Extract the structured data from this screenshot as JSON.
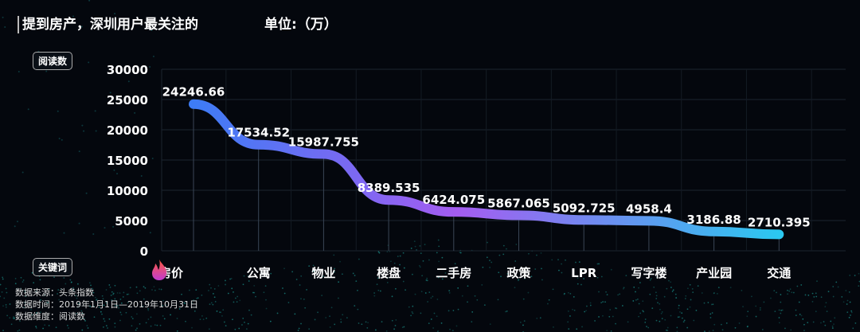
{
  "header": {
    "title": "提到房产，深圳用户最关注的",
    "unit": "单位:（万）"
  },
  "y_tag": "阅读数",
  "x_tag": "关键词",
  "notes": [
    "数据来源：头条指数",
    "数据时间：2019年1月1日—2019年10月31日",
    "数据维度：阅读数"
  ],
  "icons": {
    "first_category": "fire-icon"
  },
  "colors": {
    "line_start": "#3d7cf5",
    "line_mid": "#a45cf0",
    "line_end": "#2bc8f0"
  },
  "chart_data": {
    "type": "line",
    "title": "提到房产，深圳用户最关注的",
    "ylabel": "阅读数",
    "xlabel": "关键词",
    "ylim": [
      0,
      30000
    ],
    "yticks": [
      0,
      5000,
      10000,
      15000,
      20000,
      25000,
      30000
    ],
    "grid": true,
    "categories": [
      "房价",
      "公寓",
      "物业",
      "楼盘",
      "二手房",
      "政策",
      "LPR",
      "写字楼",
      "产业园",
      "交通"
    ],
    "values": [
      24246.66,
      17534.52,
      15987.755,
      8389.535,
      6424.075,
      5867.065,
      5092.725,
      4958.4,
      3186.88,
      2710.395
    ],
    "data_labels": [
      "24246.66",
      "17534.52",
      "15987.755",
      "8389.535",
      "6424.075",
      "5867.065",
      "5092.725",
      "4958.4",
      "3186.88",
      "2710.395"
    ]
  }
}
